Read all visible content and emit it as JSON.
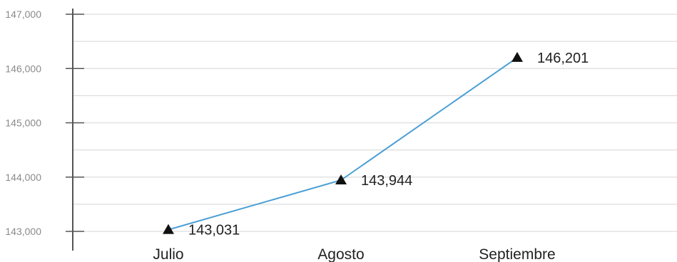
{
  "chart_data": {
    "type": "line",
    "categories": [
      "Julio",
      "Agosto",
      "Septiembre"
    ],
    "values": [
      143031,
      143944,
      146201
    ],
    "value_labels": [
      "143,031",
      "143,944",
      "146,201"
    ],
    "yticks": [
      143000,
      144000,
      145000,
      146000,
      147000
    ],
    "ytick_labels": [
      "143,000",
      "144,000",
      "145,000",
      "146,000",
      "147,000"
    ],
    "ylim": [
      143000,
      147000
    ],
    "title": "",
    "xlabel": "",
    "ylabel": "",
    "grid": true,
    "marker": "triangle",
    "line_color": "#4a9fd5",
    "marker_color": "#111111",
    "grid_color": "#dddddd"
  }
}
